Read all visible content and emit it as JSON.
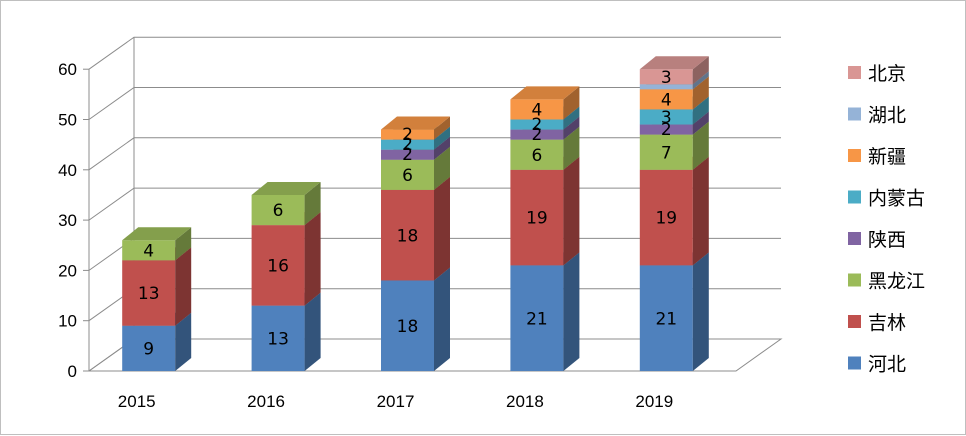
{
  "chart_data": {
    "type": "bar",
    "stacked": true,
    "style": "3d-column",
    "categories": [
      "2015",
      "2016",
      "2017",
      "2018",
      "2019"
    ],
    "series": [
      {
        "name": "河北",
        "color": "#4f81bd",
        "values": [
          9,
          13,
          18,
          21,
          21
        ]
      },
      {
        "name": "吉林",
        "color": "#c0504d",
        "values": [
          13,
          16,
          18,
          19,
          19
        ]
      },
      {
        "name": "黑龙江",
        "color": "#9bbb59",
        "values": [
          4,
          6,
          6,
          6,
          7
        ]
      },
      {
        "name": "陕西",
        "color": "#8064a2",
        "values": [
          0,
          0,
          2,
          2,
          2
        ]
      },
      {
        "name": "内蒙古",
        "color": "#4bacc6",
        "values": [
          0,
          0,
          2,
          2,
          3
        ]
      },
      {
        "name": "新疆",
        "color": "#f79646",
        "values": [
          0,
          0,
          2,
          4,
          4
        ]
      },
      {
        "name": "湖北",
        "color": "#95b3d7",
        "values": [
          0,
          0,
          0,
          0,
          1
        ]
      },
      {
        "name": "北京",
        "color": "#d99694",
        "values": [
          0,
          0,
          0,
          0,
          3
        ]
      }
    ],
    "hidden_labels": [
      {
        "series": "湖北",
        "category": "2019"
      }
    ],
    "yticks": [
      "0",
      "10",
      "20",
      "30",
      "40",
      "50",
      "60"
    ],
    "ylim": [
      0,
      60
    ],
    "grid": true,
    "legend_position": "right",
    "title": "",
    "xlabel": "",
    "ylabel": ""
  }
}
